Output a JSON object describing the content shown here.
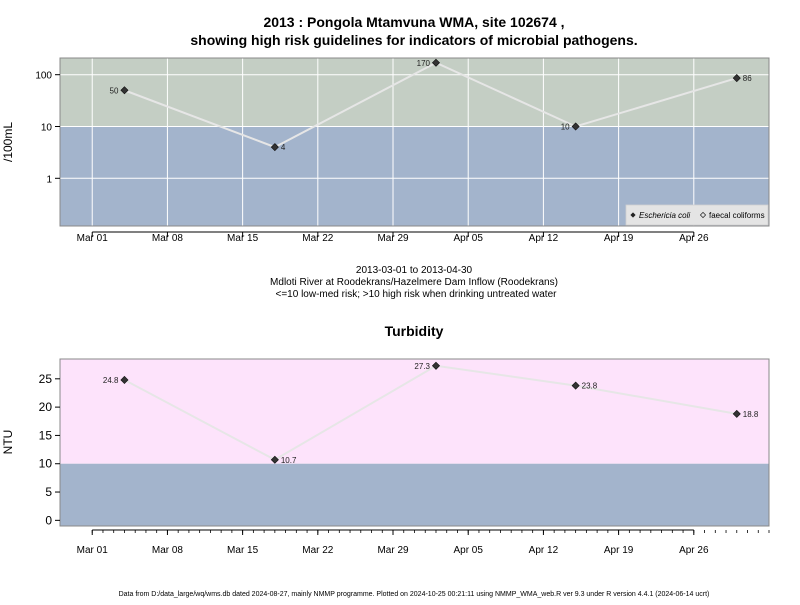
{
  "title": {
    "line1": "2013 : Pongola Mtamvuna WMA, site 102674 ,",
    "line2": "showing high risk guidelines for indicators of microbial pathogens."
  },
  "subtitle": {
    "line1": "2013-03-01 to 2013-04-30",
    "line2": "Mdloti River at Roodekrans/Hazelmere Dam Inflow (Roodekrans)",
    "line3": "<=10 low-med risk; >10 high risk when drinking untreated water"
  },
  "legend": {
    "placement": "bottom-right",
    "items": [
      {
        "label": "Eschericia coli",
        "symbol": "filled-diamond",
        "italic": true
      },
      {
        "label": "faecal coliforms",
        "symbol": "open-diamond",
        "italic": false
      }
    ]
  },
  "footer": "Data from D:/data_large/wq/wms.db dated 2024-08-27, mainly NMMP programme. Plotted on 2024-10-25 00:21:11 using NMMP_WMA_web.R ver 9.3 under R version 4.4.1 (2024-06-14 ucrt)",
  "colors": {
    "high_risk_band_micro": "#c4cec4",
    "low_risk_band": "#a3b4cc",
    "high_turbidity_band": "#fde3fb",
    "line": "#e6e6e6",
    "marker": "#333333",
    "grid": "#ffffff",
    "frame": "#888888"
  },
  "chart_data": [
    {
      "id": "microbial",
      "type": "line",
      "ylabel": "/100mL",
      "yscale": "log",
      "ylim": [
        0.12,
        210
      ],
      "xlim": [
        "2013-02-26",
        "2013-05-03"
      ],
      "yticks": [
        1,
        10,
        100
      ],
      "ytick_labels": [
        "1",
        "10",
        "100"
      ],
      "threshold": 10,
      "grid": true,
      "xticks": [
        {
          "date": "2013-03-01",
          "label": "Mar 01"
        },
        {
          "date": "2013-03-08",
          "label": "Mar 08"
        },
        {
          "date": "2013-03-15",
          "label": "Mar 15"
        },
        {
          "date": "2013-03-22",
          "label": "Mar 22"
        },
        {
          "date": "2013-03-29",
          "label": "Mar 29"
        },
        {
          "date": "2013-04-05",
          "label": "Apr 05"
        },
        {
          "date": "2013-04-12",
          "label": "Apr 12"
        },
        {
          "date": "2013-04-19",
          "label": "Apr 19"
        },
        {
          "date": "2013-04-26",
          "label": "Apr 26"
        }
      ],
      "series": [
        {
          "name": "Eschericia coli",
          "points": [
            {
              "x": "2013-03-04",
              "y": 50,
              "label": "50",
              "label_side": "left"
            },
            {
              "x": "2013-03-18",
              "y": 4,
              "label": "4",
              "label_side": "right"
            },
            {
              "x": "2013-04-02",
              "y": 170,
              "label": "170",
              "label_side": "left"
            },
            {
              "x": "2013-04-15",
              "y": 10,
              "label": "10",
              "label_side": "left"
            },
            {
              "x": "2013-04-30",
              "y": 86,
              "label": "86",
              "label_side": "right"
            }
          ]
        }
      ]
    },
    {
      "id": "turbidity",
      "type": "line",
      "title": "Turbidity",
      "ylabel": "NTU",
      "yscale": "linear",
      "ylim": [
        -1,
        28.5
      ],
      "xlim": [
        "2013-02-26",
        "2013-05-03"
      ],
      "yticks": [
        0,
        5,
        10,
        15,
        20,
        25
      ],
      "ytick_labels": [
        "0",
        "5",
        "10",
        "15",
        "20",
        "25"
      ],
      "threshold": 10,
      "grid": false,
      "xticks": [
        {
          "date": "2013-03-01",
          "label": "Mar 01"
        },
        {
          "date": "2013-03-08",
          "label": "Mar 08"
        },
        {
          "date": "2013-03-15",
          "label": "Mar 15"
        },
        {
          "date": "2013-03-22",
          "label": "Mar 22"
        },
        {
          "date": "2013-03-29",
          "label": "Mar 29"
        },
        {
          "date": "2013-04-05",
          "label": "Apr 05"
        },
        {
          "date": "2013-04-12",
          "label": "Apr 12"
        },
        {
          "date": "2013-04-19",
          "label": "Apr 19"
        },
        {
          "date": "2013-04-26",
          "label": "Apr 26"
        }
      ],
      "series": [
        {
          "name": "",
          "points": [
            {
              "x": "2013-03-04",
              "y": 24.8,
              "label": "24.8",
              "label_side": "left"
            },
            {
              "x": "2013-03-18",
              "y": 10.7,
              "label": "10.7",
              "label_side": "right"
            },
            {
              "x": "2013-04-02",
              "y": 27.3,
              "label": "27.3",
              "label_side": "left"
            },
            {
              "x": "2013-04-15",
              "y": 23.8,
              "label": "23.8",
              "label_side": "right"
            },
            {
              "x": "2013-04-30",
              "y": 18.8,
              "label": "18.8",
              "label_side": "right"
            }
          ]
        }
      ]
    }
  ]
}
